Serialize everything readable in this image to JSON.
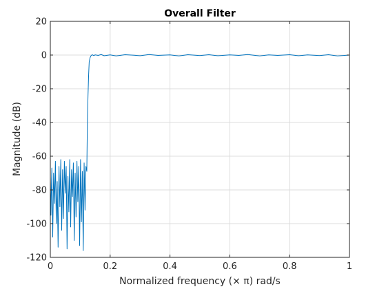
{
  "chart_data": {
    "type": "line",
    "title": "Overall Filter",
    "xlabel": "Normalized frequency (× π) rad/s",
    "ylabel": "Magnitude (dB)",
    "xlim": [
      0,
      1
    ],
    "ylim": [
      -120,
      20
    ],
    "xticks": [
      0,
      0.2,
      0.4,
      0.6,
      0.8,
      1
    ],
    "xtick_labels": [
      "0",
      "0.2",
      "0.4",
      "0.6",
      "0.8",
      "1"
    ],
    "yticks": [
      -120,
      -100,
      -80,
      -60,
      -40,
      -20,
      0,
      20
    ],
    "ytick_labels": [
      "-120",
      "-100",
      "-80",
      "-60",
      "-40",
      "-20",
      "0",
      "20"
    ],
    "grid": true,
    "line_color": "#0072BD",
    "series": [
      {
        "x": [
          0,
          0.002,
          0.005,
          0.008,
          0.011,
          0.014,
          0.017,
          0.02,
          0.023,
          0.026,
          0.029,
          0.032,
          0.035,
          0.038,
          0.041,
          0.044,
          0.047,
          0.05,
          0.053,
          0.056,
          0.059,
          0.062,
          0.065,
          0.068,
          0.071,
          0.074,
          0.077,
          0.08,
          0.083,
          0.086,
          0.089,
          0.092,
          0.095,
          0.098,
          0.101,
          0.104,
          0.107,
          0.11,
          0.113,
          0.116,
          0.119,
          0.122,
          0.124,
          0.126,
          0.128,
          0.13,
          0.133,
          0.136,
          0.14,
          0.145,
          0.15,
          0.16,
          0.17,
          0.18,
          0.2,
          0.22,
          0.25,
          0.28,
          0.3,
          0.33,
          0.36,
          0.4,
          0.43,
          0.46,
          0.5,
          0.53,
          0.56,
          0.6,
          0.63,
          0.66,
          0.7,
          0.73,
          0.76,
          0.8,
          0.83,
          0.86,
          0.9,
          0.93,
          0.96,
          1.0
        ],
        "y": [
          -72,
          -95,
          -67,
          -108,
          -70,
          -88,
          -63,
          -100,
          -75,
          -114,
          -66,
          -90,
          -62,
          -104,
          -68,
          -97,
          -63,
          -82,
          -66,
          -115,
          -72,
          -93,
          -62,
          -102,
          -68,
          -84,
          -64,
          -110,
          -70,
          -96,
          -63,
          -87,
          -66,
          -113,
          -62,
          -99,
          -69,
          -116,
          -64,
          -92,
          -66,
          -69,
          -38,
          -24,
          -12,
          -4,
          -1.5,
          -0.4,
          0.2,
          -0.3,
          0.1,
          -0.2,
          0.3,
          -0.4,
          0.1,
          -0.5,
          0.2,
          -0.1,
          -0.4,
          0.3,
          -0.2,
          0.1,
          -0.5,
          0.2,
          -0.3,
          0.2,
          -0.4,
          0.1,
          -0.2,
          0.3,
          -0.5,
          0.1,
          -0.2,
          0.2,
          -0.4,
          0.1,
          -0.3,
          0.2,
          -0.5,
          0
        ]
      }
    ]
  }
}
